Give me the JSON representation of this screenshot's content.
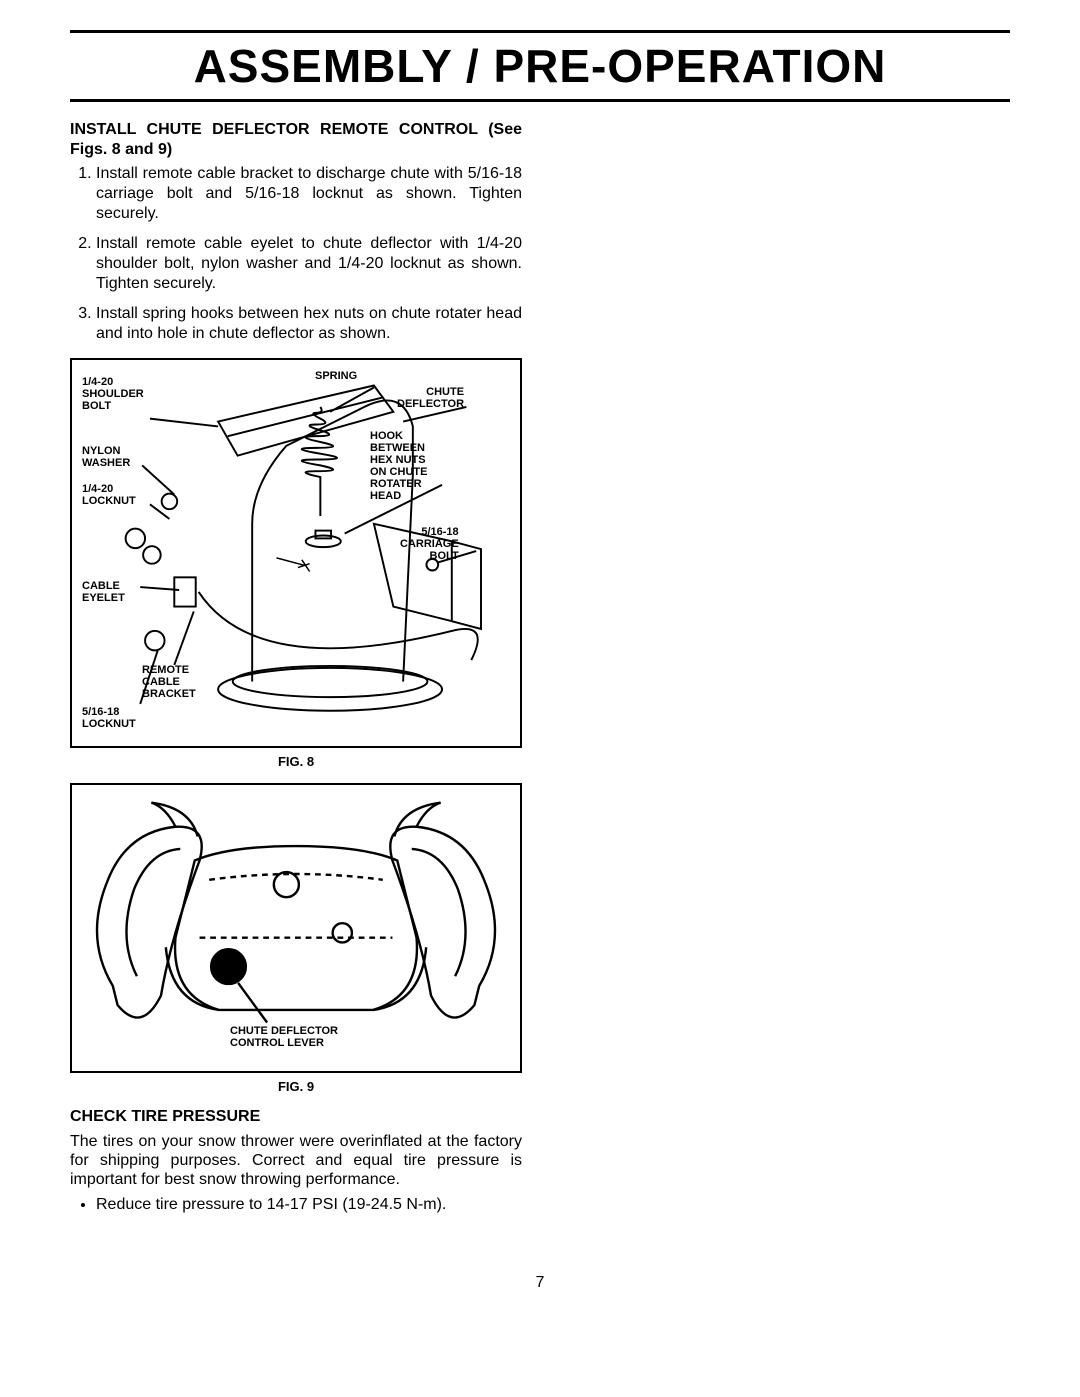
{
  "page": {
    "title": "ASSEMBLY / PRE-OPERATION",
    "number": "7"
  },
  "section1": {
    "heading": "INSTALL CHUTE DEFLECTOR REMOTE CONTROL (See Figs. 8 and 9)",
    "steps": [
      "Install remote cable bracket to discharge chute with 5/16-18 carriage bolt and 5/16-18 locknut as shown. Tighten securely.",
      "Install remote cable eyelet to chute deflector with 1/4-20 shoulder bolt, nylon washer and 1/4-20 locknut as shown.  Tighten securely.",
      "Install spring hooks between hex nuts on chute rotater head and into hole in chute deflector as shown."
    ]
  },
  "fig8": {
    "caption": "FIG. 8",
    "labels": {
      "shoulder_bolt": "1/4-20\nSHOULDER\nBOLT",
      "nylon_washer": "NYLON\nWASHER",
      "locknut_14": "1/4-20\nLOCKNUT",
      "cable_eyelet": "CABLE\nEYELET",
      "remote_cable_bracket": "REMOTE\nCABLE\nBRACKET",
      "locknut_516": "5/16-18\nLOCKNUT",
      "spring": "SPRING",
      "chute_deflector": "CHUTE\nDEFLECTOR",
      "hook_between": "HOOK\nBETWEEN\nHEX NUTS\nON CHUTE\nROTATER\nHEAD",
      "carriage_bolt": "5/16-18\nCARRIAGE\nBOLT"
    },
    "style": {
      "stroke": "#000000",
      "stroke_width": 2,
      "fill": "#ffffff"
    }
  },
  "fig9": {
    "caption": "FIG. 9",
    "label": "CHUTE DEFLECTOR\nCONTROL LEVER",
    "style": {
      "stroke": "#000000",
      "stroke_width": 2,
      "fill": "#ffffff"
    }
  },
  "section2": {
    "heading": "CHECK TIRE PRESSURE",
    "para": "The tires on your snow thrower were overinflated at the factory for shipping purposes.  Correct and equal tire pressure is important for best snow throwing performance.",
    "bullet": "Reduce tire pressure to 14-17 PSI (19-24.5 N-m)."
  }
}
